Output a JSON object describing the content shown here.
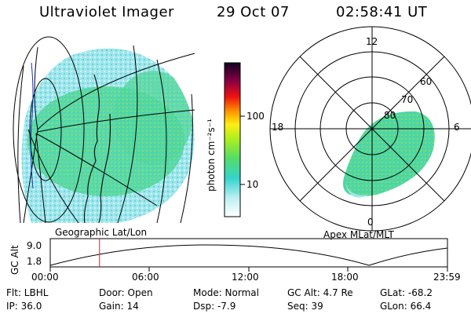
{
  "header": {
    "instrument": "Ultraviolet Imager",
    "date": "29 Oct 07",
    "time": "02:58:41 UT"
  },
  "colorbar": {
    "unit_label": "photon cm⁻²s⁻¹",
    "ticks": [
      "100",
      "10"
    ]
  },
  "geo_panel": {
    "caption": "Geographic Lat/Lon"
  },
  "polar_panel": {
    "caption": "Apex MLat/MLT",
    "mlt_labels": {
      "top": "12",
      "left": "18",
      "right": "6",
      "bottom": "0"
    },
    "lat_labels": [
      "60",
      "70",
      "80"
    ]
  },
  "altitude_plot": {
    "ylabel": "GC Alt",
    "ytick_high": "9.0",
    "ytick_low": "1.8",
    "xticks": [
      "00:00",
      "06:00",
      "12:00",
      "18:00",
      "23:59"
    ],
    "marker_time": "02:58:41"
  },
  "info": {
    "filter": "Flt: LBHL",
    "ip": "IP: 36.0",
    "door": "Door: Open",
    "gain": "Gain: 14",
    "mode": "Mode: Normal",
    "dsp": "Dsp:    -7.9",
    "gc_alt": "GC Alt: 4.7 Re",
    "seq": "Seq: 39",
    "glat": "GLat:  -68.2",
    "glon": "GLon:  66.4"
  },
  "colors": {
    "aurora_low": "#33ccbb",
    "aurora_mid": "#66dd55",
    "aurora_background": "#9fe6ee",
    "marker_line": "#cc2222"
  }
}
